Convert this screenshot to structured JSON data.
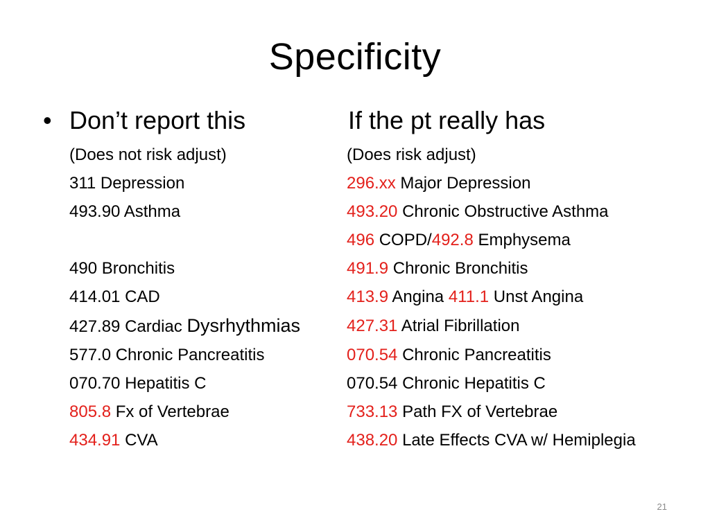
{
  "slide": {
    "title": "Specificity",
    "bullet": "•",
    "head_left": "Don’t report this",
    "head_right": "If the pt really has",
    "page_number": "21"
  },
  "rows": [
    {
      "left": [
        {
          "text": "(Does not risk adjust)"
        }
      ],
      "right": [
        {
          "text": "(Does risk adjust)"
        }
      ]
    },
    {
      "left": [
        {
          "text": "311 Depression"
        }
      ],
      "right": [
        {
          "text": "296.xx",
          "red": true
        },
        {
          "text": " Major Depression"
        }
      ]
    },
    {
      "left": [
        {
          "text": "493.90 Asthma"
        }
      ],
      "right": [
        {
          "text": "493.20",
          "red": true
        },
        {
          "text": " Chronic Obstructive Asthma"
        }
      ]
    },
    {
      "left": [],
      "right": [
        {
          "text": "496",
          "red": true
        },
        {
          "text": " COPD/"
        },
        {
          "text": "492.8",
          "red": true
        },
        {
          "text": " Emphysema"
        }
      ]
    },
    {
      "left": [
        {
          "text": "490 Bronchitis"
        }
      ],
      "right": [
        {
          "text": "491.9",
          "red": true
        },
        {
          "text": " Chronic Bronchitis"
        }
      ]
    },
    {
      "left": [
        {
          "text": "414.01 CAD"
        }
      ],
      "right": [
        {
          "text": "413.9",
          "red": true
        },
        {
          "text": " Angina "
        },
        {
          "text": "411.1",
          "red": true
        },
        {
          "text": " Unst Angina"
        }
      ]
    },
    {
      "left": [
        {
          "text": "427.89 Cardiac "
        },
        {
          "text": "Dysrhythmias",
          "big": true
        }
      ],
      "right": [
        {
          "text": "427.31",
          "red": true
        },
        {
          "text": " Atrial Fibrillation"
        }
      ]
    },
    {
      "left": [
        {
          "text": "577.0 Chronic Pancreatitis"
        }
      ],
      "right": [
        {
          "text": "070.54",
          "red": true
        },
        {
          "text": " Chronic Pancreatitis"
        }
      ]
    },
    {
      "left": [
        {
          "text": "070.70 Hepatitis C"
        }
      ],
      "right": [
        {
          "text": "070.54 Chronic Hepatitis C"
        }
      ]
    },
    {
      "left": [
        {
          "text": "805.8",
          "red": true
        },
        {
          "text": " Fx of Vertebrae"
        }
      ],
      "right": [
        {
          "text": "733.13",
          "red": true
        },
        {
          "text": " Path FX of Vertebrae"
        }
      ]
    },
    {
      "left": [
        {
          "text": "434.91",
          "red": true
        },
        {
          "text": " CVA"
        }
      ],
      "right": [
        {
          "text": "438.20",
          "red": true
        },
        {
          "text": " Late Effects CVA w/ Hemiplegia"
        }
      ]
    }
  ],
  "colors": {
    "highlight": "#e3201b",
    "text": "#000000",
    "page_number": "#8a8a8a"
  }
}
